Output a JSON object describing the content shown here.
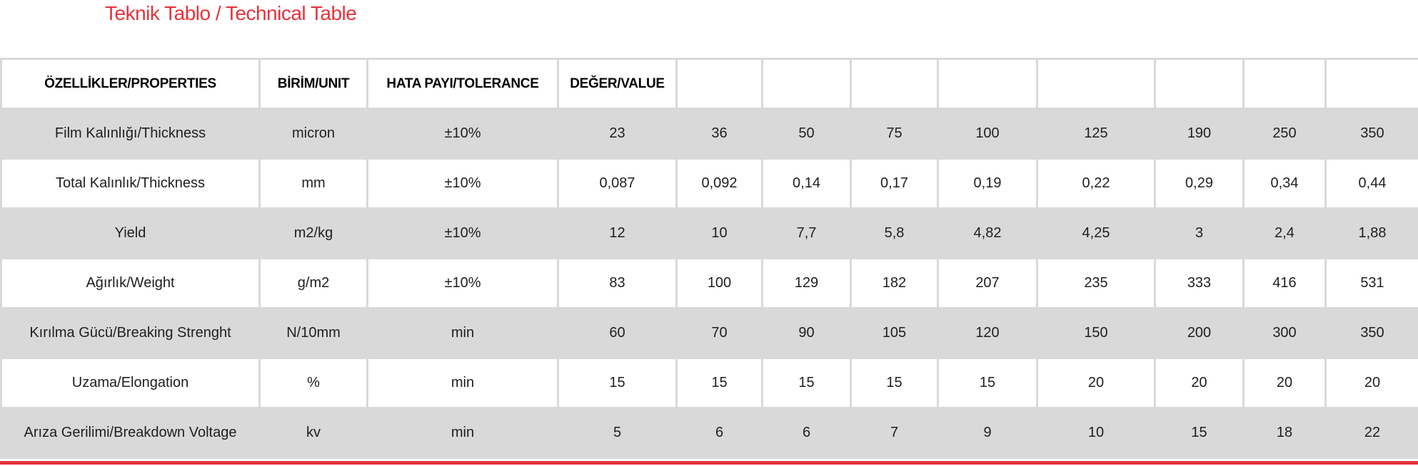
{
  "page": {
    "title": "Teknik Tablo / Technical Table"
  },
  "colors": {
    "title_red": "#e4333c",
    "accent_line_red": "#e0333c",
    "row_stripe_gray": "#d9d9d9",
    "border_gray": "#d9d9d9"
  },
  "table": {
    "headers": [
      "ÖZELLİKLER/PROPERTIES",
      "BİRİM/UNIT",
      "HATA PAYI/TOLERANCE",
      "DEĞER/VALUE",
      "",
      "",
      "",
      "",
      "",
      "",
      "",
      ""
    ],
    "rows": [
      {
        "property": "Film Kalınlığı/Thickness",
        "unit": "micron",
        "tolerance": "±10%",
        "values": [
          "23",
          "36",
          "50",
          "75",
          "100",
          "125",
          "190",
          "250",
          "350"
        ]
      },
      {
        "property": "Total Kalınlık/Thickness",
        "unit": "mm",
        "tolerance": "±10%",
        "values": [
          "0,087",
          "0,092",
          "0,14",
          "0,17",
          "0,19",
          "0,22",
          "0,29",
          "0,34",
          "0,44"
        ]
      },
      {
        "property": "Yield",
        "unit": "m2/kg",
        "tolerance": "±10%",
        "values": [
          "12",
          "10",
          "7,7",
          "5,8",
          "4,82",
          "4,25",
          "3",
          "2,4",
          "1,88"
        ]
      },
      {
        "property": "Ağırlık/Weight",
        "unit": "g/m2",
        "tolerance": "±10%",
        "values": [
          "83",
          "100",
          "129",
          "182",
          "207",
          "235",
          "333",
          "416",
          "531"
        ]
      },
      {
        "property": "Kırılma Gücü/Breaking Strenght",
        "unit": "N/10mm",
        "tolerance": "min",
        "values": [
          "60",
          "70",
          "90",
          "105",
          "120",
          "150",
          "200",
          "300",
          "350"
        ]
      },
      {
        "property": "Uzama/Elongation",
        "unit": "%",
        "tolerance": "min",
        "values": [
          "15",
          "15",
          "15",
          "15",
          "15",
          "20",
          "20",
          "20",
          "20"
        ]
      },
      {
        "property": "Arıza Gerilimi/Breakdown Voltage",
        "unit": "kv",
        "tolerance": "min",
        "values": [
          "5",
          "6",
          "6",
          "7",
          "9",
          "10",
          "15",
          "18",
          "22"
        ]
      }
    ]
  }
}
